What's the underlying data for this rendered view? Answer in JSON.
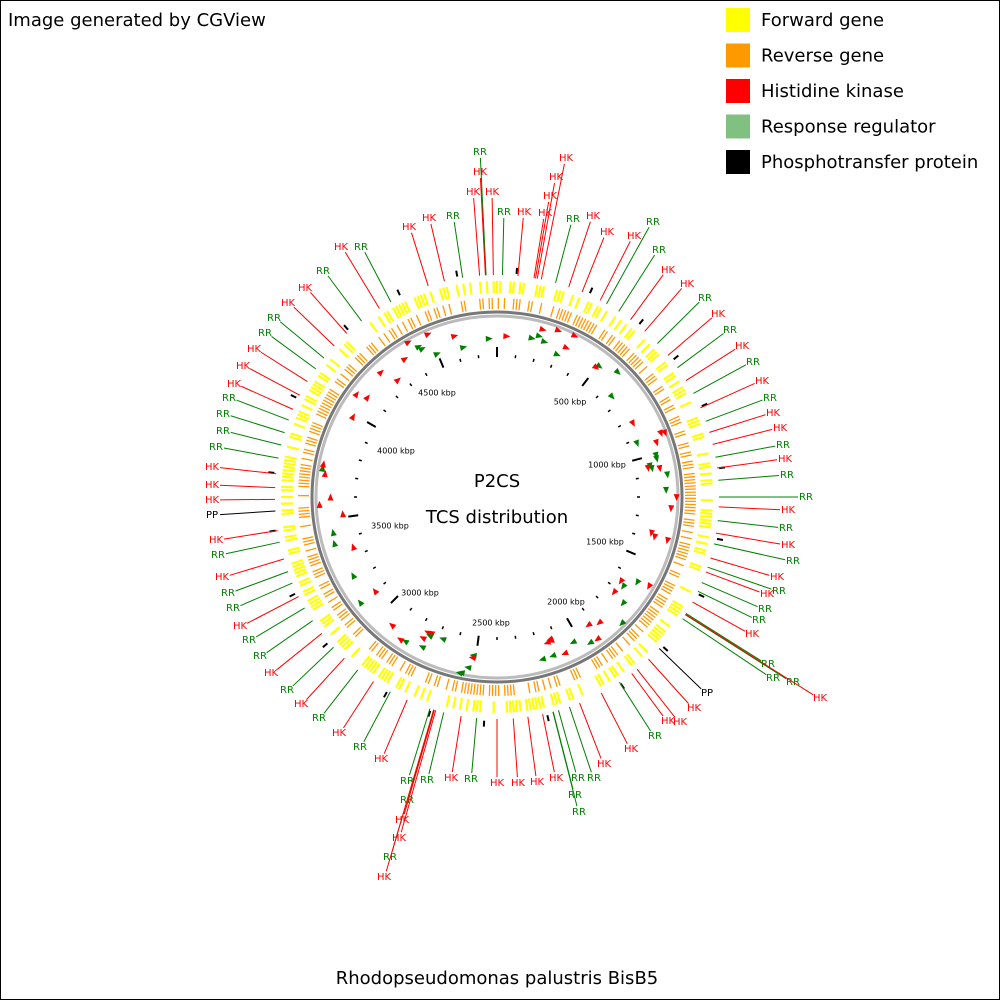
{
  "header": {
    "credit": "Image generated by CGView"
  },
  "legend": [
    {
      "name": "Forward gene",
      "color": "#ffff00"
    },
    {
      "name": "Reverse gene",
      "color": "#ff9900"
    },
    {
      "name": "Histidine kinase",
      "color": "#ff0000"
    },
    {
      "name": "Response regulator",
      "color": "#80c080"
    },
    {
      "name": "Phosphotransfer protein",
      "color": "#000000"
    }
  ],
  "center": {
    "title": "P2CS",
    "subtitle": "TCS distribution"
  },
  "footer": {
    "organism": "Rhodopseudomonas palustris BisB5"
  },
  "scale_labels": [
    "500 kbp",
    "1000 kbp",
    "1500 kbp",
    "2000 kbp",
    "2500 kbp",
    "3000 kbp",
    "3500 kbp",
    "4000 kbp",
    "4500 kbp"
  ],
  "label_colors": {
    "HK": "#ff0000",
    "RR": "#008000",
    "PP": "#000000"
  },
  "features": [
    "RR",
    "HK",
    "HK",
    "HK",
    "RR",
    "HK",
    "HK",
    "HK",
    "HK",
    "HK",
    "RR",
    "HK",
    "HK",
    "RR",
    "HK",
    "RR",
    "HK",
    "HK",
    "RR",
    "HK",
    "RR",
    "HK",
    "RR",
    "HK",
    "RR",
    "HK",
    "HK",
    "RR",
    "HK",
    "RR",
    "RR",
    "HK",
    "RR",
    "HK",
    "RR",
    "HK",
    "RR",
    "HK",
    "RR",
    "RR",
    "HK",
    "RR",
    "RR",
    "RR",
    "HK",
    "PP",
    "HK",
    "HK",
    "HK",
    "RR",
    "HK",
    "HK",
    "RR",
    "RR",
    "RR",
    "RR",
    "HK",
    "HK",
    "HK",
    "HK",
    "RR",
    "HK",
    "RR",
    "RR",
    "RR",
    "HK",
    "HK",
    "RR",
    "HK",
    "HK",
    "RR",
    "HK",
    "RR",
    "HK",
    "RR",
    "HK",
    "RR",
    "RR",
    "HK",
    "RR",
    "RR",
    "HK",
    "RR",
    "HK",
    "PP",
    "HK",
    "HK",
    "HK",
    "RR",
    "RR",
    "RR",
    "RR",
    "HK",
    "HK",
    "HK",
    "RR",
    "RR",
    "HK",
    "HK",
    "RR",
    "HK",
    "RR",
    "HK",
    "HK",
    "RR"
  ]
}
